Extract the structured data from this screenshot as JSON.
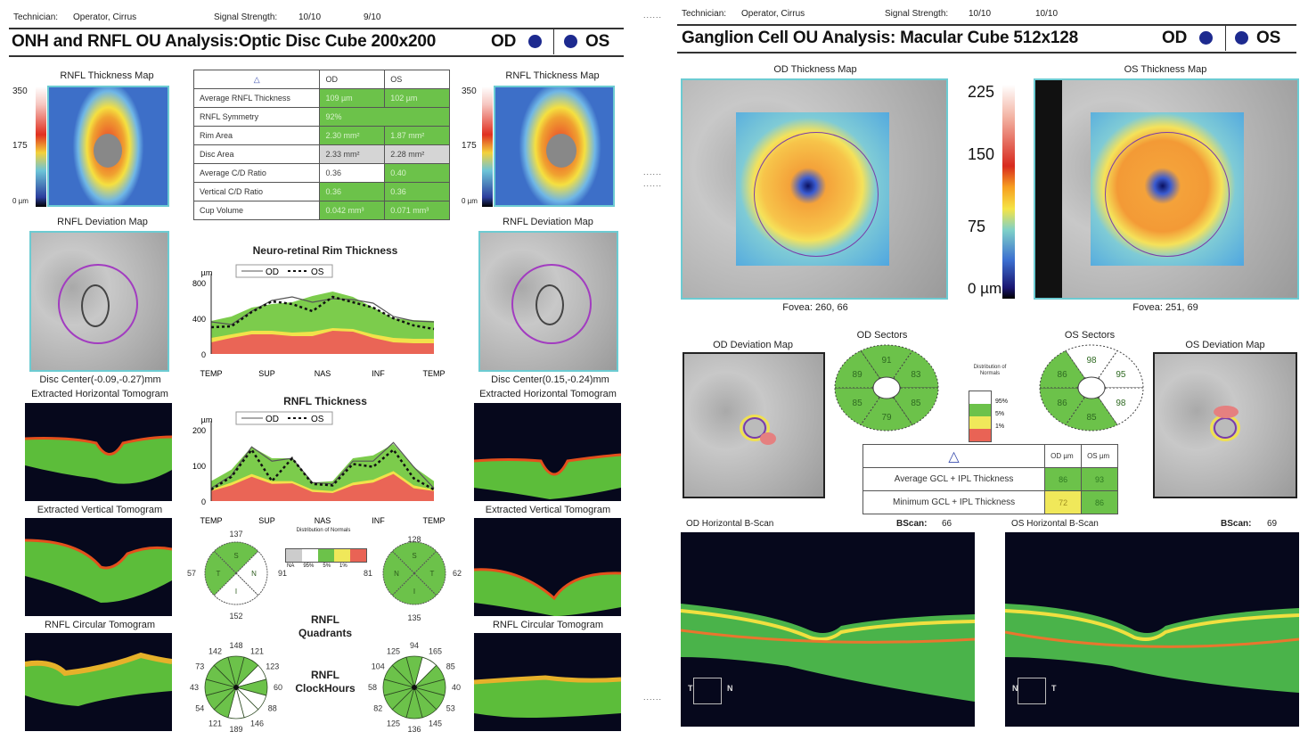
{
  "left": {
    "technician_label": "Technician:",
    "technician": "Operator, Cirrus",
    "signal_label": "Signal Strength:",
    "signal_od": "10/10",
    "signal_os": "9/10",
    "title": "ONH and RNFL OU Analysis:Optic Disc Cube 200x200",
    "od": "OD",
    "os": "OS",
    "thickness_map_title": "RNFL Thickness Map",
    "thickness_scale": [
      "350",
      "175",
      "0 µm"
    ],
    "deviation_map_title": "RNFL Deviation Map",
    "od_disc_center": "Disc Center(-0.09,-0.27)mm",
    "os_disc_center": "Disc Center(0.15,-0.24)mm",
    "horiz_tomo": "Extracted Horizontal Tomogram",
    "vert_tomo": "Extracted Vertical Tomogram",
    "circ_tomo": "RNFL Circular Tomogram",
    "table": {
      "header": [
        "",
        "OD",
        "OS"
      ],
      "rows": [
        {
          "label": "Average RNFL Thickness",
          "od": "109 µm",
          "os": "102 µm",
          "od_c": "g",
          "os_c": "g"
        },
        {
          "label": "RNFL Symmetry",
          "od": "92%",
          "os": "",
          "od_c": "g",
          "os_c": "g",
          "span": true
        },
        {
          "label": "Rim Area",
          "od": "2.30 mm²",
          "os": "1.87 mm²",
          "od_c": "g",
          "os_c": "g"
        },
        {
          "label": "Disc Area",
          "od": "2.33 mm²",
          "os": "2.28 mm²",
          "od_c": "gr",
          "os_c": "gr"
        },
        {
          "label": "Average C/D Ratio",
          "od": "0.36",
          "os": "0.40",
          "od_c": "w",
          "os_c": "g"
        },
        {
          "label": "Vertical C/D Ratio",
          "od": "0.36",
          "os": "0.36",
          "od_c": "g",
          "os_c": "g"
        },
        {
          "label": "Cup Volume",
          "od": "0.042 mm³",
          "os": "0.071 mm³",
          "od_c": "g",
          "os_c": "g"
        }
      ]
    },
    "rim_chart_title": "Neuro-retinal Rim Thickness",
    "rnfl_chart_title": "RNFL Thickness",
    "legend_od": "OD",
    "legend_os": "OS",
    "unit": "µm",
    "quadrants_title": [
      "RNFL",
      "Quadrants"
    ],
    "clockhours_title": [
      "RNFL",
      "ClockHours"
    ],
    "normals_legend_title": "Distribution of Normals",
    "normals_legend_labels": [
      "NA",
      "95%",
      "5%",
      "1%"
    ],
    "od_quadrants": {
      "S": "137",
      "N": "91",
      "I": "152",
      "T": "57"
    },
    "os_quadrants": {
      "S": "128",
      "N": "81",
      "I": "135",
      "T": "62"
    },
    "od_clock": [
      "148",
      "121",
      "123",
      "60",
      "88",
      "146",
      "189",
      "121",
      "54",
      "43",
      "73",
      "142"
    ],
    "os_clock": [
      "94",
      "165",
      "85",
      "40",
      "53",
      "145",
      "136",
      "125",
      "82",
      "58",
      "104",
      "125"
    ]
  },
  "right": {
    "technician_label": "Technician:",
    "technician": "Operator, Cirrus",
    "signal_label": "Signal Strength:",
    "signal_od": "10/10",
    "signal_os": "10/10",
    "title": "Ganglion Cell OU Analysis: Macular Cube 512x128",
    "od": "OD",
    "os": "OS",
    "od_map_title": "OD Thickness Map",
    "os_map_title": "OS Thickness Map",
    "scale": [
      "225",
      "150",
      "75",
      "0 µm"
    ],
    "od_fovea": "Fovea: 260, 66",
    "os_fovea": "Fovea: 251, 69",
    "od_dev_title": "OD Deviation Map",
    "os_dev_title": "OS Deviation Map",
    "od_sectors_title": "OD Sectors",
    "os_sectors_title": "OS Sectors",
    "od_sectors": [
      "91",
      "83",
      "85",
      "79",
      "85",
      "89"
    ],
    "os_sectors": [
      "98",
      "95",
      "98",
      "85",
      "86",
      "86"
    ],
    "normals_title": "Distribution of Normals",
    "normals_labels": [
      "95%",
      "5%",
      "1%"
    ],
    "gcl_table": {
      "header": [
        "OD µm",
        "OS µm"
      ],
      "rows": [
        {
          "label": "Average GCL + IPL Thickness",
          "od": "86",
          "os": "93",
          "od_c": "g",
          "os_c": "g"
        },
        {
          "label": "Minimum GCL + IPL Thickness",
          "od": "72",
          "os": "86",
          "od_c": "y",
          "os_c": "g"
        }
      ]
    },
    "od_bscan_title": "OD Horizontal B-Scan",
    "os_bscan_title": "OS Horizontal B-Scan",
    "bscan_label": "BScan:",
    "od_bscan": "66",
    "os_bscan": "69",
    "od_orient": [
      "T",
      "N"
    ],
    "os_orient": [
      "N",
      "T"
    ]
  },
  "chart_data": [
    {
      "type": "area",
      "title": "Neuro-retinal Rim Thickness",
      "ylabel": "µm",
      "categories": [
        "TEMP",
        "SUP",
        "NAS",
        "INF",
        "TEMP"
      ],
      "ylim": [
        0,
        800
      ],
      "yticks": [
        "0",
        "400",
        "800"
      ],
      "series": [
        {
          "name": "OD",
          "style": "solid",
          "values": [
            360,
            330,
            480,
            600,
            640,
            580,
            620,
            610,
            570,
            420,
            370,
            360
          ]
        },
        {
          "name": "OS",
          "style": "dashed",
          "values": [
            300,
            310,
            470,
            590,
            560,
            480,
            640,
            580,
            520,
            400,
            320,
            280
          ]
        },
        {
          "name": "normal-95",
          "values": [
            370,
            420,
            520,
            560,
            580,
            650,
            700,
            640,
            520,
            400,
            380,
            370
          ]
        },
        {
          "name": "normal-5",
          "values": [
            180,
            220,
            260,
            260,
            240,
            250,
            290,
            280,
            220,
            180,
            170,
            170
          ]
        },
        {
          "name": "normal-1",
          "values": [
            130,
            180,
            220,
            220,
            200,
            200,
            260,
            250,
            180,
            130,
            120,
            120
          ]
        }
      ]
    },
    {
      "type": "area",
      "title": "RNFL Thickness",
      "ylabel": "µm",
      "categories": [
        "TEMP",
        "SUP",
        "NAS",
        "INF",
        "TEMP"
      ],
      "ylim": [
        0,
        250
      ],
      "yticks": [
        "0",
        "100",
        "200"
      ],
      "series": [
        {
          "name": "OD",
          "style": "solid",
          "values": [
            45,
            90,
            190,
            140,
            150,
            65,
            60,
            140,
            140,
            205,
            120,
            45
          ]
        },
        {
          "name": "OS",
          "style": "dashed",
          "values": [
            40,
            85,
            180,
            70,
            150,
            60,
            55,
            130,
            120,
            180,
            80,
            40
          ]
        },
        {
          "name": "normal-95",
          "values": [
            70,
            110,
            190,
            150,
            150,
            65,
            70,
            150,
            160,
            200,
            120,
            70
          ]
        },
        {
          "name": "normal-5",
          "values": [
            40,
            65,
            95,
            70,
            70,
            40,
            35,
            65,
            75,
            105,
            55,
            40
          ]
        },
        {
          "name": "normal-1",
          "values": [
            35,
            55,
            85,
            60,
            62,
            32,
            28,
            55,
            65,
            95,
            45,
            35
          ]
        }
      ]
    }
  ]
}
